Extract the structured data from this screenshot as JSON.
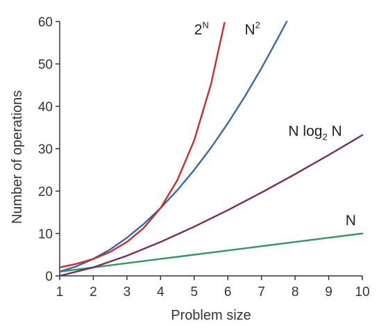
{
  "chart_data": {
    "type": "line",
    "xlabel": "Problem size",
    "ylabel": "Number of operations",
    "xlim": [
      1,
      10
    ],
    "ylim": [
      0,
      60
    ],
    "xticks": [
      1,
      2,
      3,
      4,
      5,
      6,
      7,
      8,
      9,
      10
    ],
    "yticks": [
      0,
      10,
      20,
      30,
      40,
      50,
      60
    ],
    "grid": false,
    "legend": "none",
    "series": [
      {
        "name": "N",
        "color": "#2e9a5e",
        "x": [
          1,
          2,
          3,
          4,
          5,
          6,
          7,
          8,
          9,
          10
        ],
        "y": [
          1,
          2,
          3,
          4,
          5,
          6,
          7,
          8,
          9,
          10
        ],
        "label": {
          "base": "N",
          "at": [
            9.5,
            12.0
          ]
        }
      },
      {
        "name": "N log2 N",
        "color": "#7a2a5a",
        "x": [
          1,
          2,
          3,
          4,
          5,
          6,
          7,
          8,
          9,
          10
        ],
        "y": [
          0,
          2,
          4.75,
          8,
          11.61,
          15.51,
          19.65,
          24,
          28.53,
          33.22
        ],
        "label": {
          "base": "N log",
          "sub": "2",
          "tail": " N",
          "at": [
            7.8,
            33.0
          ]
        }
      },
      {
        "name": "N2",
        "color": "#3a67a8",
        "x": [
          1,
          1.5,
          2,
          2.5,
          3,
          3.5,
          4,
          4.5,
          5,
          5.5,
          6,
          6.5,
          7,
          7.5,
          7.75
        ],
        "y": [
          1,
          2.25,
          4,
          6.25,
          9,
          12.25,
          16,
          20.25,
          25,
          30.25,
          36,
          42.25,
          49,
          56.25,
          60
        ],
        "label": {
          "base": "N",
          "sup": "2",
          "at": [
            6.5,
            57.0
          ]
        }
      },
      {
        "name": "2N",
        "color": "#d02a2a",
        "x": [
          1,
          1.5,
          2,
          2.5,
          3,
          3.5,
          4,
          4.5,
          5,
          5.5,
          5.9
        ],
        "y": [
          2,
          2.83,
          4,
          5.66,
          8,
          11.31,
          16,
          22.63,
          32,
          45.25,
          59.7
        ],
        "label": {
          "base": "2",
          "sup": "N",
          "at": [
            5.0,
            57.0
          ]
        }
      }
    ]
  }
}
